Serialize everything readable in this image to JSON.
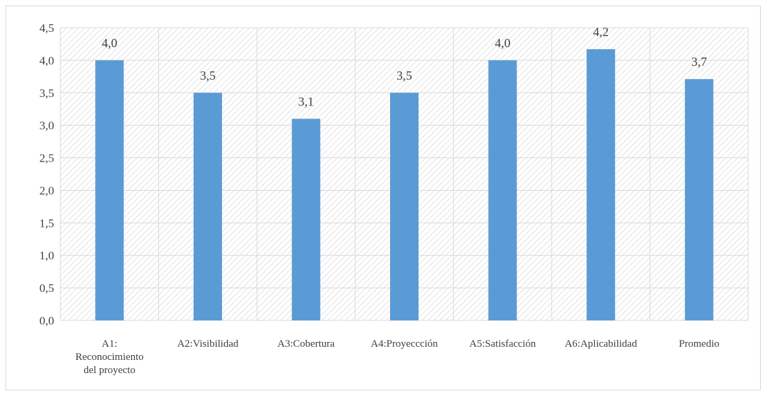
{
  "chart_data": {
    "type": "bar",
    "categories": [
      [
        "A1:",
        "Reconocimiento",
        "del proyecto"
      ],
      [
        "A2:Visibilidad"
      ],
      [
        "A3:Cobertura"
      ],
      [
        "A4:Proyeccción"
      ],
      [
        "A5:Satisfacción"
      ],
      [
        "A6:Aplicabilidad"
      ],
      [
        "Promedio"
      ]
    ],
    "values": [
      4.0,
      3.5,
      3.1,
      3.5,
      4.0,
      4.17,
      3.71
    ],
    "data_labels": [
      "4,0",
      "3,5",
      "3,1",
      "3,5",
      "4,0",
      "4,2",
      "3,7"
    ],
    "y_ticks": [
      0,
      0.5,
      1.0,
      1.5,
      2.0,
      2.5,
      3.0,
      3.5,
      4.0,
      4.5
    ],
    "y_tick_labels": [
      "0,0",
      "0,5",
      "1,0",
      "1,5",
      "2,0",
      "2,5",
      "3,0",
      "3,5",
      "4,0",
      "4,5"
    ],
    "ylim": [
      0,
      4.5
    ],
    "grid": true,
    "plot_background": "diagonal-hatch",
    "colors": {
      "bar": "#5b9bd5",
      "grid": "#d9d9d9",
      "hatch": "#e2e2e2",
      "text": "#404040"
    }
  }
}
